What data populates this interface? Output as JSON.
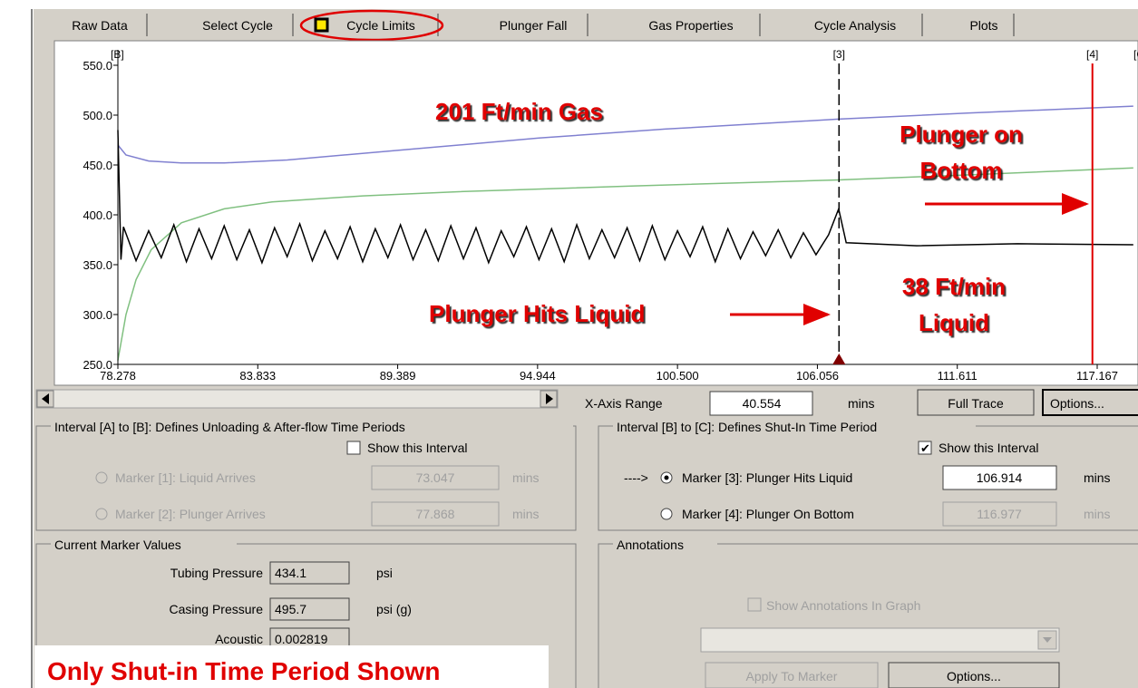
{
  "tabs": [
    "Raw Data",
    "Select Cycle",
    "Cycle Limits",
    "Plunger Fall",
    "Gas Properties",
    "Cycle Analysis",
    "Plots"
  ],
  "chart_data": {
    "type": "line",
    "xlim": [
      78.278,
      118.787
    ],
    "ylim": [
      250,
      550
    ],
    "xticks": [
      78.278,
      83.833,
      89.389,
      94.944,
      {
        "value": 100.5,
        "label": "100.500"
      },
      106.056,
      111.611,
      117.167
    ],
    "yticks": [
      {
        "value": 250,
        "label": "250.0"
      },
      {
        "value": 300,
        "label": "300.0"
      },
      {
        "value": 350,
        "label": "350.0"
      },
      {
        "value": 400,
        "label": "400.0"
      },
      {
        "value": 450,
        "label": "450.0"
      },
      {
        "value": 500,
        "label": "500.0"
      },
      {
        "value": 550,
        "label": "550.0"
      }
    ],
    "series": [
      {
        "color": "#8080d0",
        "x": [
          78.278,
          78.6,
          79.5,
          80.8,
          82.5,
          85,
          90,
          95,
          100,
          106.9,
          112,
          118.6
        ],
        "values": [
          470,
          460,
          454,
          452,
          452,
          455,
          466,
          477,
          486,
          496,
          502,
          509
        ]
      },
      {
        "color": "#80c080",
        "x": [
          78.278,
          78.6,
          79.0,
          79.6,
          80.8,
          82.5,
          84.4,
          88,
          91.6,
          98.8,
          106.9,
          112,
          118.6
        ],
        "values": [
          254,
          300,
          335,
          365,
          392,
          406,
          413,
          419,
          423,
          429,
          435,
          440,
          447
        ]
      },
      {
        "color": "#000000",
        "x": [
          78.278,
          78.4,
          78.5,
          79,
          79.5,
          80,
          80.5,
          81,
          81.5,
          82,
          82.5,
          83,
          83.5,
          84,
          84.5,
          85,
          85.5,
          86,
          86.5,
          87,
          87.5,
          88,
          88.5,
          89,
          89.5,
          90,
          90.5,
          91,
          91.5,
          92,
          92.5,
          93,
          93.5,
          94,
          94.5,
          95,
          95.5,
          96,
          96.5,
          97,
          97.5,
          98,
          98.5,
          99,
          99.5,
          100,
          100.5,
          101,
          101.5,
          102,
          102.5,
          103,
          103.5,
          104,
          104.5,
          105,
          105.5,
          106,
          106.5,
          106.9,
          107.2,
          110,
          114,
          118.6
        ],
        "values": [
          485,
          355,
          388,
          354,
          384,
          357,
          390,
          353,
          386,
          356,
          389,
          355,
          385,
          352,
          387,
          358,
          391,
          354,
          384,
          356,
          388,
          353,
          386,
          357,
          390,
          355,
          385,
          354,
          389,
          356,
          387,
          352,
          384,
          358,
          388,
          355,
          386,
          353,
          390,
          356,
          385,
          357,
          387,
          354,
          389,
          355,
          384,
          358,
          388,
          353,
          386,
          356,
          383,
          359,
          385,
          357,
          382,
          360,
          380,
          406,
          372,
          369,
          371,
          370
        ]
      }
    ],
    "markers": [
      {
        "label": "[B]"
      },
      {
        "label": "[3]"
      },
      {
        "label": "[4]"
      },
      {
        "label": "[C]"
      }
    ],
    "annotations": [
      {
        "text": "201 Ft/min Gas"
      },
      {
        "lines": [
          "Plunger on",
          "Bottom"
        ]
      },
      {
        "lines": [
          "38 Ft/min",
          "Liquid"
        ]
      },
      {
        "text": "Plunger Hits Liquid"
      }
    ]
  },
  "x_range": {
    "label": "X-Axis Range",
    "value": 40.554,
    "unit": "mins"
  },
  "buttons": [
    "Full Trace",
    "Options..."
  ],
  "interval_ab": {
    "title": "Interval [A] to [B]: Defines Unloading & After-flow Time Periods",
    "show_label": "Show this Interval",
    "show": false,
    "markers": [
      {
        "label": "Marker [1]: Liquid Arrives",
        "value": 73.047,
        "unit": "mins"
      },
      {
        "label": "Marker [2]: Plunger Arrives",
        "value": 77.868,
        "unit": "mins"
      }
    ]
  },
  "interval_bc": {
    "title": "Interval [B] to [C]: Defines Shut-In Time Period",
    "show_label": "Show this Interval",
    "show": true,
    "pointer": "---->",
    "markers": [
      {
        "label": "Marker [3]: Plunger Hits Liquid",
        "value": 106.914,
        "unit": "mins",
        "selected": true
      },
      {
        "label": "Marker [4]: Plunger On Bottom",
        "value": 116.977,
        "unit": "mins",
        "selected": false
      }
    ]
  },
  "current_values": {
    "title": "Current Marker Values",
    "rows": [
      {
        "label": "Tubing Pressure",
        "value": 434.1,
        "unit": "psi"
      },
      {
        "label": "Casing Pressure",
        "value": 495.7,
        "unit": "psi (g)"
      },
      {
        "label": "Acoustic",
        "value": 0.002819
      }
    ]
  },
  "annotations": {
    "title": "Annotations",
    "show_label": "Show Annotations In Graph",
    "buttons": [
      "Apply To Marker",
      "Options..."
    ]
  },
  "caption": "Only Shut-in Time Period Shown"
}
